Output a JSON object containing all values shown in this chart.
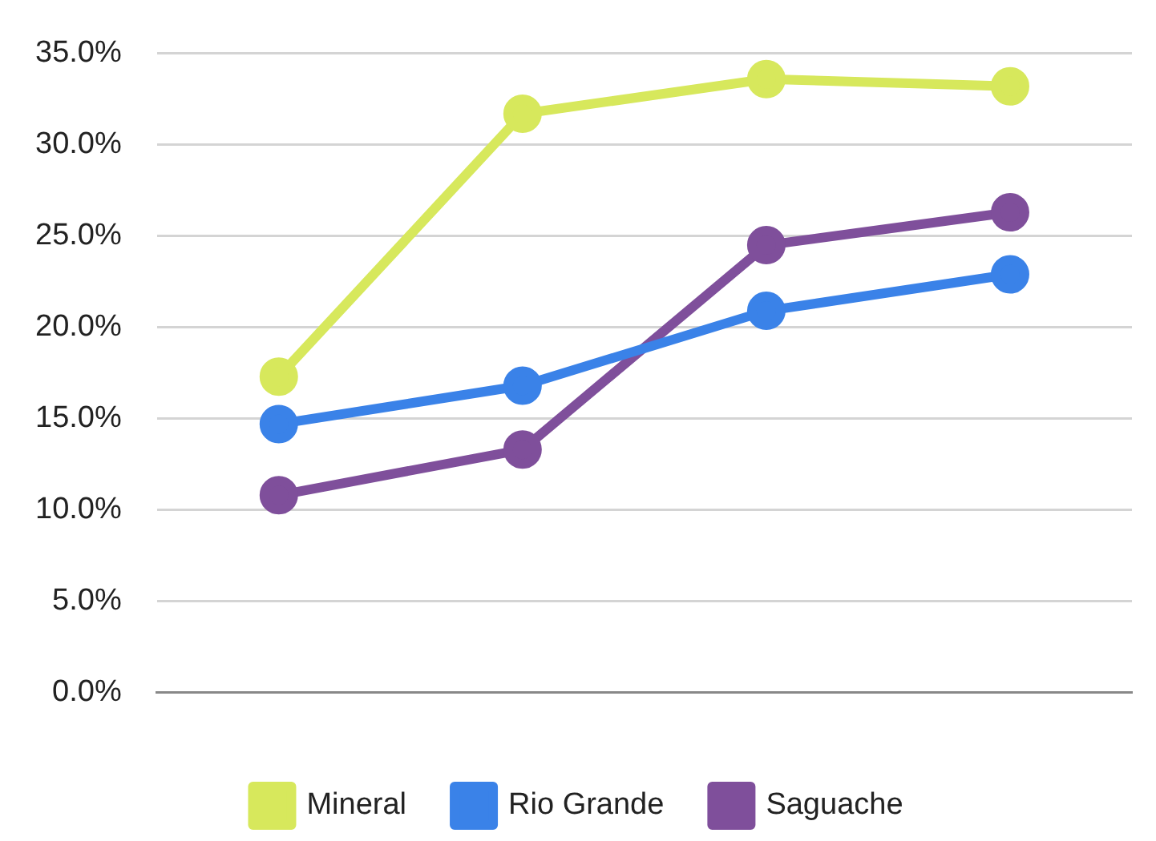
{
  "chart_data": {
    "type": "line",
    "categories": [
      null,
      null,
      null,
      null
    ],
    "series": [
      {
        "name": "Mineral",
        "color": "#d7e85c",
        "values": [
          17.3,
          31.7,
          33.6,
          33.2
        ]
      },
      {
        "name": "Rio Grande",
        "color": "#3a82e8",
        "values": [
          14.7,
          16.8,
          20.9,
          22.9
        ]
      },
      {
        "name": "Saguache",
        "color": "#7f4f9b",
        "values": [
          10.8,
          13.3,
          24.5,
          26.3
        ]
      }
    ],
    "ylim": [
      0,
      35
    ],
    "yticks": [
      {
        "value": 0,
        "label": "0.0%"
      },
      {
        "value": 5,
        "label": "5.0%"
      },
      {
        "value": 10,
        "label": "10.0%"
      },
      {
        "value": 15,
        "label": "15.0%"
      },
      {
        "value": 20,
        "label": "20.0%"
      },
      {
        "value": 25,
        "label": "25.0%"
      },
      {
        "value": 30,
        "label": "30.0%"
      },
      {
        "value": 35,
        "label": "35.0%"
      }
    ],
    "grid": "y",
    "legend": "bottom",
    "marker": "circle",
    "line_style": "solid"
  }
}
